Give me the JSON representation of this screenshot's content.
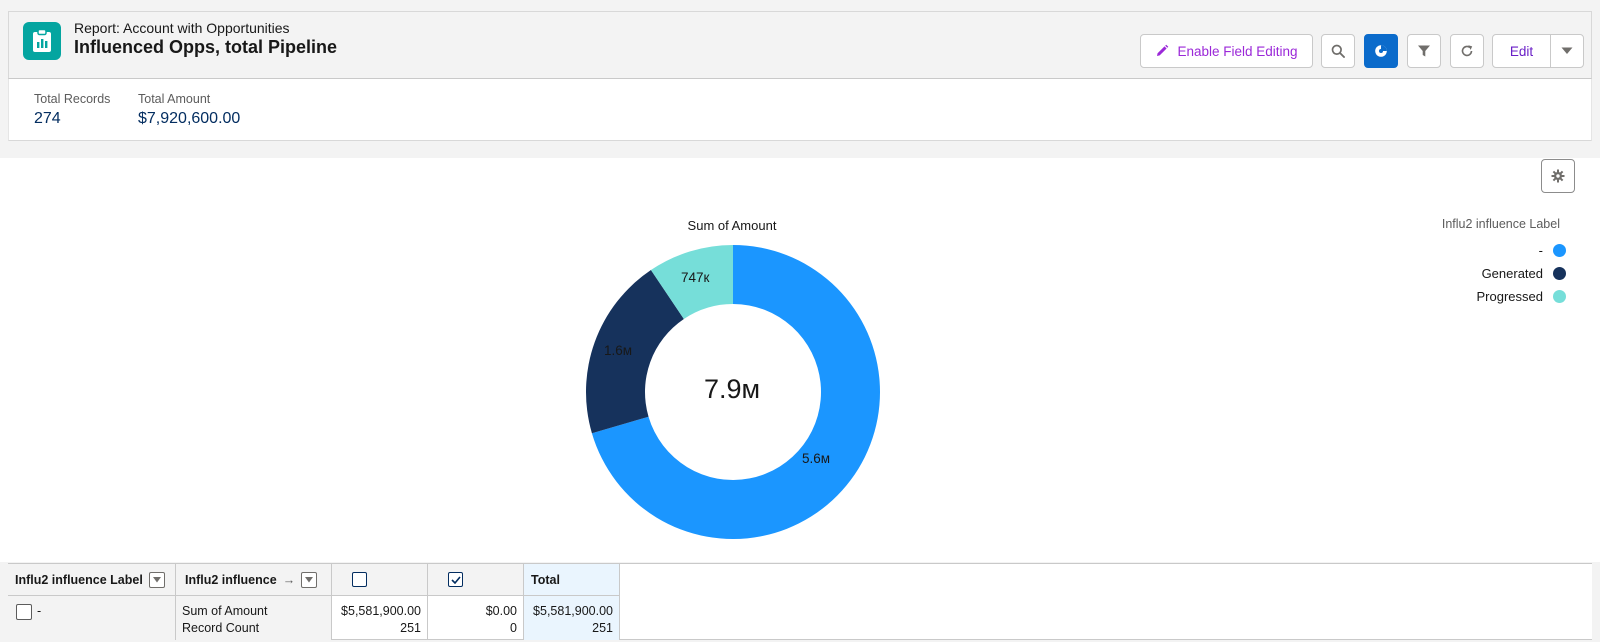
{
  "header": {
    "report_type": "Report: Account with Opportunities",
    "title": "Influenced Opps, total Pipeline",
    "enable_field_editing_label": "Enable Field Editing",
    "edit_label": "Edit",
    "icons": [
      "report-icon",
      "pencil-icon",
      "search-icon",
      "chart-icon",
      "filter-icon",
      "refresh-icon",
      "chevron-down-icon"
    ]
  },
  "summary": {
    "total_records_label": "Total Records",
    "total_records_value": "274",
    "total_amount_label": "Total Amount",
    "total_amount_value": "$7,920,600.00"
  },
  "chart": {
    "settings_icon": "gear-icon",
    "center_total": "7.9м",
    "legend_title": "Influ2 influence Label"
  },
  "chart_data": {
    "type": "donut",
    "title": "Sum of Amount",
    "series": [
      {
        "name": "-",
        "value": 5581900,
        "label": "5.6м",
        "color": "#1b96ff"
      },
      {
        "name": "Generated",
        "value": 1592000,
        "label": "1.6м",
        "color": "#16325c"
      },
      {
        "name": "Progressed",
        "value": 746700,
        "label": "747к",
        "color": "#76ded9"
      }
    ],
    "legend_position": "top-right"
  },
  "table": {
    "columns": {
      "label_col": "Influ2 influence Label",
      "influence_col": "Influ2 influence",
      "arrow": "→",
      "total_col": "Total"
    },
    "rows": [
      {
        "label": "-",
        "metric_1": "Sum of Amount",
        "metric_2": "Record Count",
        "unchecked_amount": "$5,581,900.00",
        "unchecked_count": "251",
        "checked_amount": "$0.00",
        "checked_count": "0",
        "total_amount": "$5,581,900.00",
        "total_count": "251"
      }
    ]
  }
}
